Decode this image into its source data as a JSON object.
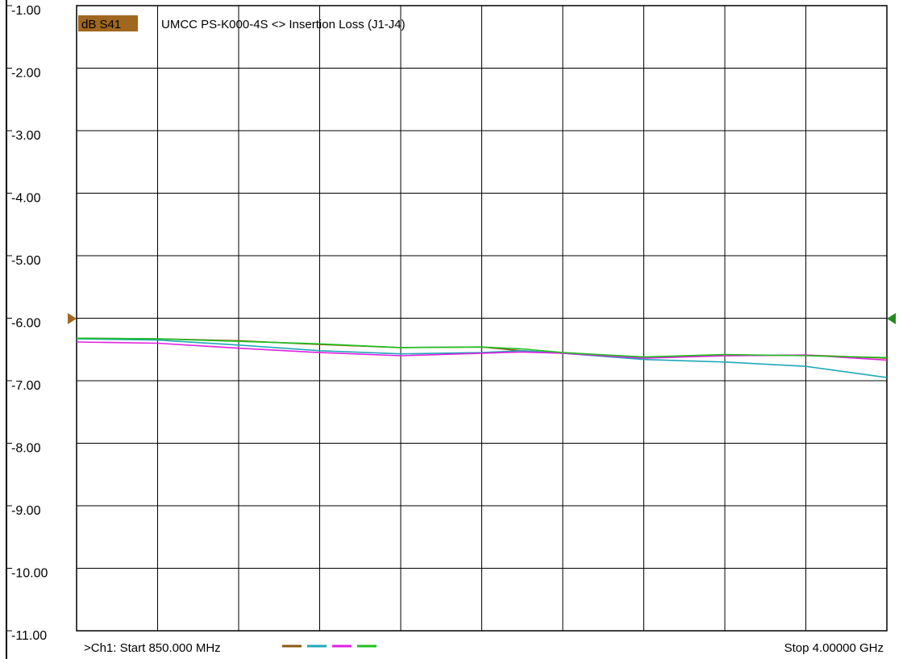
{
  "chart_data": {
    "type": "line",
    "trace_label": "dB S41",
    "title": "UMCC   PS-K000-4S <> Insertion Loss (J1-J4)",
    "start_label": ">Ch1: Start  850.000 MHz",
    "stop_label": "Stop  4.00000 GHz",
    "xlim": [
      0.85,
      4.0
    ],
    "ylim": [
      -11.0,
      -1.0
    ],
    "yticks": [
      {
        "value": -1,
        "label": "-1.00"
      },
      {
        "value": -2,
        "label": "-2.00"
      },
      {
        "value": -3,
        "label": "-3.00"
      },
      {
        "value": -4,
        "label": "-4.00"
      },
      {
        "value": -5,
        "label": "-5.00"
      },
      {
        "value": -6,
        "label": "-6.00"
      },
      {
        "value": -7,
        "label": "-7.00"
      },
      {
        "value": -8,
        "label": "-8.00"
      },
      {
        "value": -9,
        "label": "-9.00"
      },
      {
        "value": -10,
        "label": "-10.00"
      },
      {
        "value": -11,
        "label": "-11.00"
      }
    ],
    "x_divisions": 10,
    "grid": true,
    "reference_level": -6.0,
    "colors": {
      "trace_label_bg": "#a0681e",
      "marker_left": "#a0681e",
      "marker_right": "#228b22"
    },
    "series": [
      {
        "color": "#8b5a14",
        "x": [
          0.85,
          1.165,
          1.48,
          1.795,
          2.11,
          2.425,
          2.58,
          2.74,
          3.055,
          3.37,
          3.685,
          4.0
        ],
        "y": [
          -6.32,
          -6.33,
          -6.36,
          -6.42,
          -6.47,
          -6.46,
          -6.52,
          -6.56,
          -6.62,
          -6.6,
          -6.59,
          -6.64
        ]
      },
      {
        "color": "#20a8b8",
        "x": [
          0.85,
          1.165,
          1.48,
          1.795,
          2.11,
          2.425,
          2.58,
          2.74,
          3.055,
          3.37,
          3.685,
          4.0
        ],
        "y": [
          -6.33,
          -6.35,
          -6.43,
          -6.52,
          -6.57,
          -6.55,
          -6.52,
          -6.56,
          -6.66,
          -6.7,
          -6.77,
          -6.95
        ]
      },
      {
        "color": "#e020e0",
        "x": [
          0.85,
          1.165,
          1.48,
          1.795,
          2.11,
          2.425,
          2.58,
          2.74,
          3.055,
          3.37,
          3.685,
          4.0
        ],
        "y": [
          -6.38,
          -6.4,
          -6.48,
          -6.55,
          -6.6,
          -6.56,
          -6.54,
          -6.56,
          -6.64,
          -6.6,
          -6.59,
          -6.67
        ]
      },
      {
        "color": "#20c020",
        "x": [
          0.85,
          1.165,
          1.48,
          1.795,
          2.11,
          2.425,
          2.58,
          2.74,
          3.055,
          3.37,
          3.685,
          4.0
        ],
        "y": [
          -6.32,
          -6.33,
          -6.37,
          -6.41,
          -6.47,
          -6.46,
          -6.49,
          -6.55,
          -6.62,
          -6.58,
          -6.6,
          -6.63
        ]
      }
    ]
  }
}
